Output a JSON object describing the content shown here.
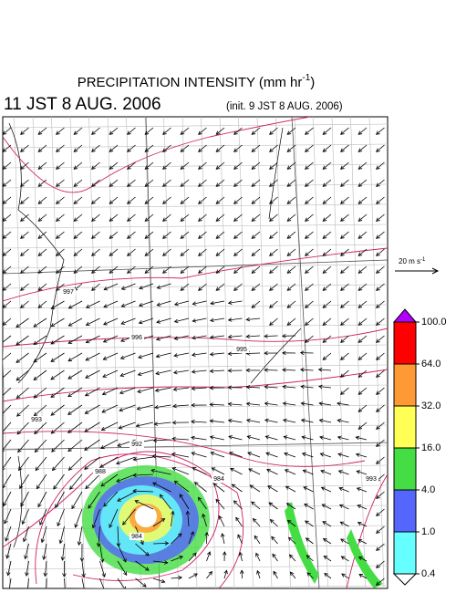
{
  "header": {
    "title": "PRECIPITATION INTENSITY (mm hr",
    "title_exp": "-1",
    "title_end": ")",
    "valid_time": "11 JST 8 AUG. 2006",
    "init_time": "(init. 9 JST 8 AUG. 2006)"
  },
  "wind_scale": {
    "label": "20 m s",
    "label_exp": "-1"
  },
  "colorbar": {
    "ticks": [
      {
        "value": 100,
        "label": "100.0"
      },
      {
        "value": 64,
        "label": "64.0"
      },
      {
        "value": 32,
        "label": "32.0"
      },
      {
        "value": 16,
        "label": "16.0"
      },
      {
        "value": 4,
        "label": "4.0"
      },
      {
        "value": 1,
        "label": "1.0"
      },
      {
        "value": 0.4,
        "label": "0.4"
      }
    ],
    "colors": [
      "#b400ff",
      "#ff0000",
      "#ff9933",
      "#ffff55",
      "#44dd44",
      "#5566ff",
      "#66ffff",
      "#ffffff"
    ]
  },
  "isobar_labels": [
    "997",
    "996",
    "995",
    "993",
    "992",
    "988",
    "984",
    "993",
    "984"
  ]
}
